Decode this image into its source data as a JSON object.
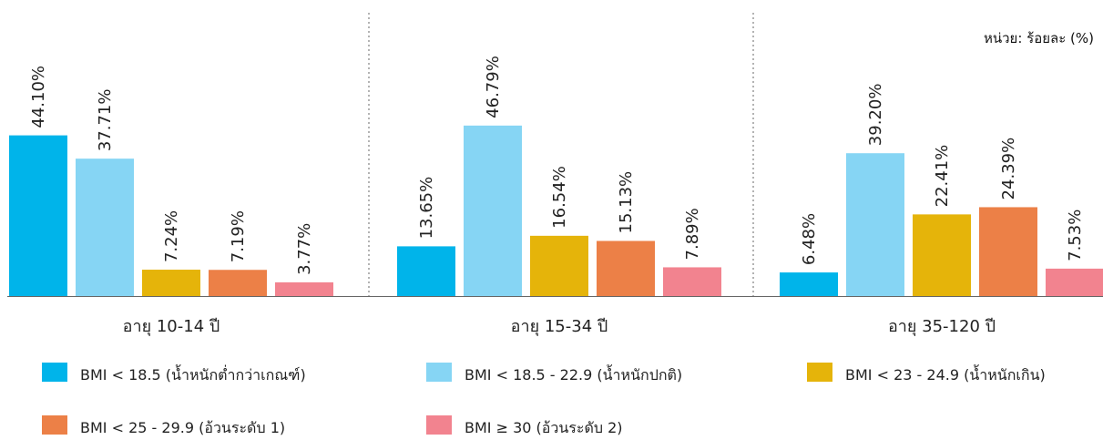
{
  "unit_label": "หน่วย: ร้อยละ (%)",
  "chart_data": {
    "type": "bar",
    "categories": [
      "อายุ 10-14 ปี",
      "อายุ 15-34 ปี",
      "อายุ 35-120 ปี"
    ],
    "series": [
      {
        "name": "BMI < 18.5 (น้ำหนักต่ำกว่าเกณฑ์)",
        "color": "#00B4EA",
        "values": [
          44.1,
          13.65,
          6.48
        ],
        "labels": [
          "44.10%",
          "13.65%",
          "6.48%"
        ]
      },
      {
        "name": "BMI < 18.5 - 22.9 (น้ำหนักปกติ)",
        "color": "#86D5F4",
        "values": [
          37.71,
          46.79,
          39.2
        ],
        "labels": [
          "37.71%",
          "46.79%",
          "39.20%"
        ]
      },
      {
        "name": "BMI < 23 - 24.9 (น้ำหนักเกิน)",
        "color": "#E5B40A",
        "values": [
          7.24,
          16.54,
          22.41
        ],
        "labels": [
          "7.24%",
          "16.54%",
          "22.41%"
        ]
      },
      {
        "name": "BMI < 25 - 29.9 (อ้วนระดับ 1)",
        "color": "#EC8047",
        "values": [
          7.19,
          15.13,
          24.39
        ],
        "labels": [
          "7.19%",
          "15.13%",
          "24.39%"
        ]
      },
      {
        "name": "BMI ≥ 30  (อ้วนระดับ 2)",
        "color": "#F2838F",
        "values": [
          3.77,
          7.89,
          7.53
        ],
        "labels": [
          "3.77%",
          "7.89%",
          "7.53%"
        ]
      }
    ],
    "ylim": [
      0,
      50
    ],
    "grid": false,
    "separators": "dotted",
    "legend_position": "bottom"
  }
}
